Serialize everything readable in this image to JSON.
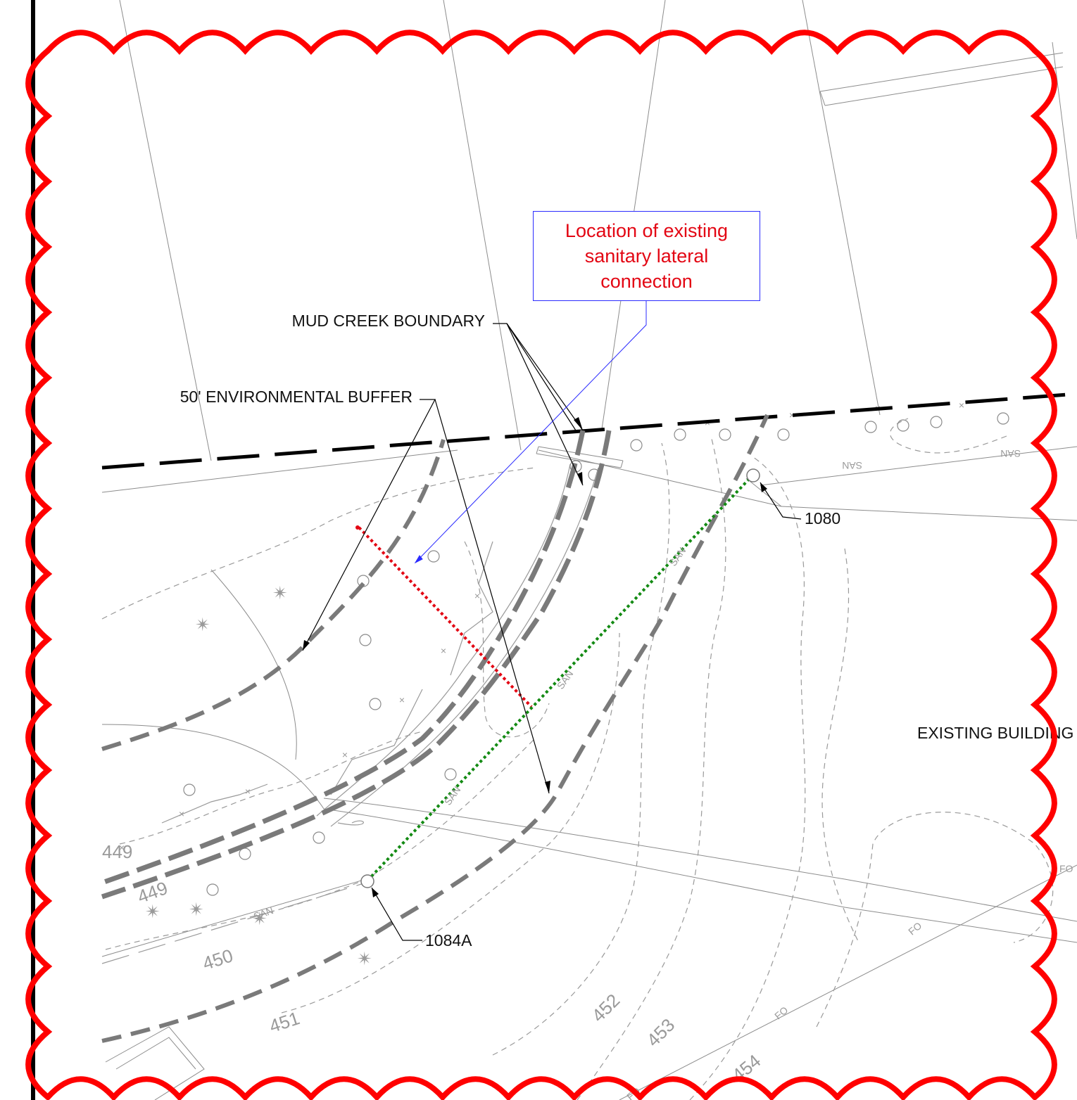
{
  "callout": {
    "text": "Location of existing sanitary lateral connection",
    "text_color": "#e30613",
    "border_color": "#2b2bff"
  },
  "labels": {
    "mud_creek": "MUD CREEK BOUNDARY",
    "buffer": "50' ENVIRONMENTAL BUFFER",
    "existing_building": "EXISTING BUILDING",
    "mh_1080": "1080",
    "mh_1084a": "1084A"
  },
  "contours": [
    "449",
    "450",
    "451",
    "452",
    "453",
    "454"
  ],
  "utility_tags": {
    "sanitary": "SAN",
    "fiber_optic": "FO"
  },
  "colors": {
    "revision_cloud": "#ff0000",
    "buffer_line": "#7a7a7a",
    "property_line": "#000000",
    "proposed_sewer": "#138a13",
    "red_dotted": "#e30613"
  }
}
